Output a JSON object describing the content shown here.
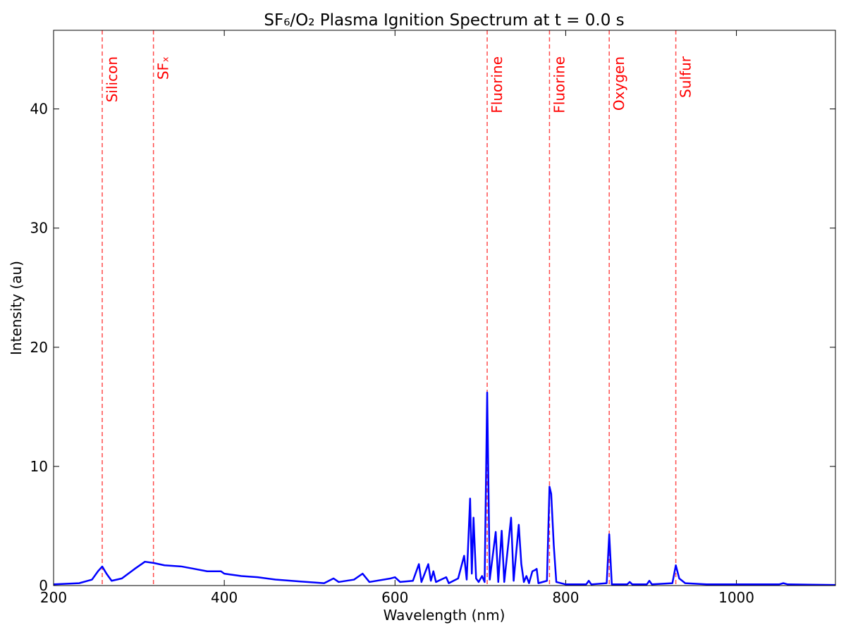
{
  "chart_data": {
    "type": "line",
    "title": "SF₆/O₂ Plasma Ignition Spectrum at t = 0.0 s",
    "x_label": "Wavelength (nm)",
    "y_label": "Intensity (au)",
    "xlim": [
      200,
      1116
    ],
    "ylim": [
      0,
      46.6
    ],
    "xticks": [
      200,
      400,
      600,
      800,
      1000
    ],
    "yticks": [
      0,
      10,
      20,
      30,
      40
    ],
    "series": [
      {
        "color": "#0000ff",
        "x": [
          200,
          230,
          245,
          252,
          257,
          262,
          268,
          280,
          295,
          307,
          317,
          330,
          350,
          365,
          380,
          396,
          400,
          420,
          439,
          460,
          488,
          517,
          528,
          534,
          552,
          562,
          570,
          595,
          600,
          606,
          621,
          628,
          631,
          639,
          642,
          645,
          648,
          660,
          663,
          674,
          681,
          684,
          688,
          690,
          692,
          695,
          698,
          702,
          705,
          708,
          711,
          718,
          721,
          725,
          728,
          736,
          739,
          745,
          748,
          751,
          754,
          757,
          761,
          764,
          766,
          768,
          778,
          781,
          783,
          786,
          789,
          800,
          824,
          827,
          830,
          848,
          851,
          854,
          872,
          875,
          878,
          895,
          898,
          901,
          925,
          929,
          933,
          940,
          965,
          1050,
          1055,
          1060,
          1116
        ],
        "values": [
          0.1,
          0.2,
          0.5,
          1.2,
          1.6,
          1.0,
          0.4,
          0.6,
          1.4,
          2.0,
          1.9,
          1.7,
          1.6,
          1.4,
          1.2,
          1.2,
          1.0,
          0.8,
          0.7,
          0.5,
          0.35,
          0.2,
          0.6,
          0.3,
          0.5,
          1.0,
          0.3,
          0.6,
          0.7,
          0.3,
          0.4,
          1.8,
          0.3,
          1.8,
          0.4,
          1.2,
          0.3,
          0.7,
          0.2,
          0.6,
          2.5,
          0.5,
          7.3,
          1.0,
          5.7,
          0.6,
          0.3,
          0.8,
          0.3,
          16.2,
          0.5,
          4.5,
          0.3,
          4.6,
          0.3,
          5.7,
          0.4,
          5.1,
          1.8,
          0.3,
          0.8,
          0.2,
          1.2,
          1.3,
          1.4,
          0.2,
          0.4,
          8.3,
          7.7,
          3.4,
          0.3,
          0.1,
          0.1,
          0.4,
          0.1,
          0.2,
          4.3,
          0.1,
          0.1,
          0.3,
          0.1,
          0.1,
          0.4,
          0.1,
          0.2,
          1.7,
          0.6,
          0.2,
          0.1,
          0.1,
          0.2,
          0.1,
          0.05
        ]
      }
    ],
    "reference_lines": {
      "color": "#ff0000",
      "lines": [
        {
          "x": 257,
          "label": "Silicon"
        },
        {
          "x": 317,
          "label": "SFₓ"
        },
        {
          "x": 708,
          "label": "Fluorine"
        },
        {
          "x": 781,
          "label": "Fluorine"
        },
        {
          "x": 851,
          "label": "Oxygen"
        },
        {
          "x": 929,
          "label": "Sulfur"
        }
      ]
    }
  }
}
